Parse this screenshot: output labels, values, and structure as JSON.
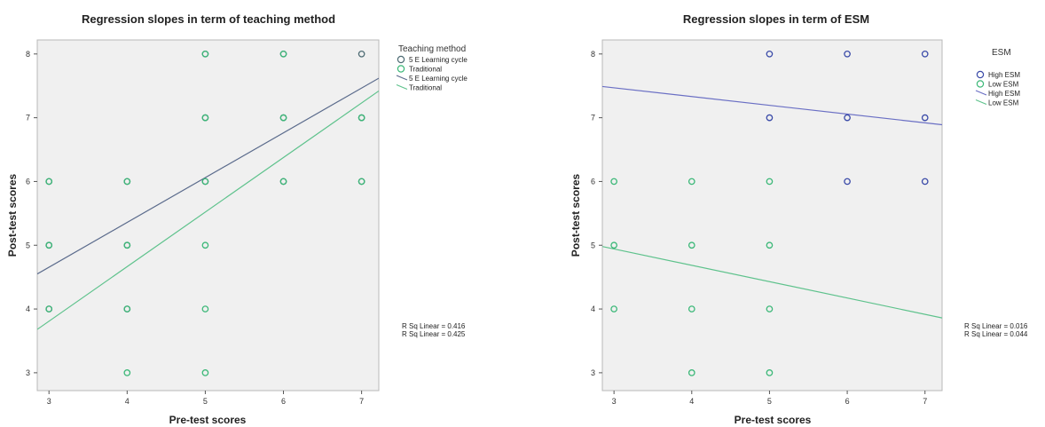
{
  "chart_data": [
    {
      "type": "scatter",
      "title": "Regression slopes in term of teaching method",
      "xlabel": "Pre-test scores",
      "ylabel": "Post-test scores",
      "xlim": [
        2.85,
        7.22
      ],
      "ylim": [
        2.72,
        8.22
      ],
      "xticks": [
        "3",
        "4",
        "5",
        "6",
        "7"
      ],
      "yticks": [
        "3",
        "4",
        "5",
        "6",
        "7",
        "8"
      ],
      "grid": false,
      "legend_title": "Teaching method",
      "legend_position": "right",
      "legend": [
        {
          "label": "5 E Learning cycle",
          "kind": "marker",
          "color": "#4d6b73"
        },
        {
          "label": "Traditional",
          "kind": "marker",
          "color": "#3cb878"
        },
        {
          "label": "5 E Learning cycle",
          "kind": "line",
          "color": "#5b6b8c"
        },
        {
          "label": "Traditional",
          "kind": "line",
          "color": "#5ec28c"
        }
      ],
      "series": [
        {
          "name": "5 E Learning cycle",
          "color": "#4d6b73",
          "points": [
            [
              3,
              6
            ],
            [
              3,
              5
            ],
            [
              3,
              4
            ],
            [
              4,
              6
            ],
            [
              4,
              5
            ],
            [
              4,
              4
            ],
            [
              5,
              6
            ],
            [
              5,
              8
            ],
            [
              5,
              7
            ],
            [
              6,
              8
            ],
            [
              6,
              7
            ],
            [
              6,
              6
            ],
            [
              7,
              8
            ],
            [
              7,
              7
            ],
            [
              7,
              6
            ]
          ]
        },
        {
          "name": "Traditional",
          "color": "#3cb878",
          "points": [
            [
              3,
              6
            ],
            [
              3,
              5
            ],
            [
              3,
              4
            ],
            [
              4,
              6
            ],
            [
              4,
              5
            ],
            [
              4,
              4
            ],
            [
              4,
              3
            ],
            [
              5,
              8
            ],
            [
              5,
              7
            ],
            [
              5,
              6
            ],
            [
              5,
              5
            ],
            [
              5,
              4
            ],
            [
              5,
              3
            ],
            [
              6,
              8
            ],
            [
              6,
              7
            ],
            [
              6,
              6
            ],
            [
              7,
              7
            ],
            [
              7,
              6
            ]
          ]
        }
      ],
      "fit_lines": [
        {
          "name": "5 E Learning cycle",
          "color": "#5b6b8c",
          "x": [
            2.85,
            7.22
          ],
          "y": [
            4.55,
            7.62
          ]
        },
        {
          "name": "Traditional",
          "color": "#5ec28c",
          "x": [
            2.85,
            7.22
          ],
          "y": [
            3.68,
            7.42
          ]
        }
      ],
      "annotations": [
        "R Sq Linear = 0.416",
        "R Sq Linear = 0.425"
      ]
    },
    {
      "type": "scatter",
      "title": "Regression slopes in term of ESM",
      "xlabel": "Pre-test scores",
      "ylabel": "Post-test scores",
      "xlim": [
        2.85,
        7.22
      ],
      "ylim": [
        2.72,
        8.22
      ],
      "xticks": [
        "3",
        "4",
        "5",
        "6",
        "7"
      ],
      "yticks": [
        "3",
        "4",
        "5",
        "6",
        "7",
        "8"
      ],
      "grid": false,
      "legend_title": "ESM",
      "legend_position": "right",
      "legend": [
        {
          "label": "High ESM",
          "kind": "marker",
          "color": "#3a4aa8"
        },
        {
          "label": "Low ESM",
          "kind": "marker",
          "color": "#3cb878"
        },
        {
          "label": "High ESM",
          "kind": "line",
          "color": "#6a6fc4"
        },
        {
          "label": "Low ESM",
          "kind": "line",
          "color": "#5ec28c"
        }
      ],
      "series": [
        {
          "name": "High ESM",
          "color": "#3a4aa8",
          "points": [
            [
              5,
              8
            ],
            [
              5,
              7
            ],
            [
              6,
              8
            ],
            [
              6,
              7
            ],
            [
              6,
              6
            ],
            [
              7,
              8
            ],
            [
              7,
              7
            ],
            [
              7,
              6
            ]
          ]
        },
        {
          "name": "Low ESM",
          "color": "#3cb878",
          "points": [
            [
              3,
              6
            ],
            [
              3,
              5
            ],
            [
              3,
              4
            ],
            [
              4,
              6
            ],
            [
              4,
              5
            ],
            [
              4,
              4
            ],
            [
              4,
              3
            ],
            [
              5,
              6
            ],
            [
              5,
              5
            ],
            [
              5,
              4
            ],
            [
              5,
              3
            ]
          ]
        }
      ],
      "fit_lines": [
        {
          "name": "High ESM",
          "color": "#6a6fc4",
          "x": [
            2.85,
            7.22
          ],
          "y": [
            7.49,
            6.89
          ]
        },
        {
          "name": "Low ESM",
          "color": "#5ec28c",
          "x": [
            2.85,
            7.22
          ],
          "y": [
            4.98,
            3.86
          ]
        }
      ],
      "annotations": [
        "R Sq Linear = 0.016",
        "R Sq Linear = 0.044"
      ]
    }
  ]
}
